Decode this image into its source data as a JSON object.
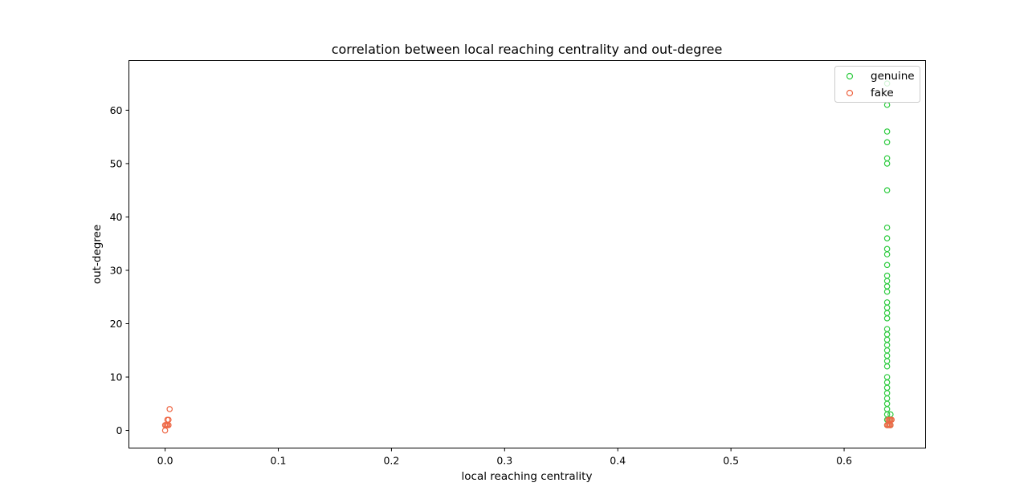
{
  "chart_data": {
    "type": "scatter",
    "title": "correlation between local reaching centrality and out-degree",
    "xlabel": "local reaching centrality",
    "ylabel": "out-degree",
    "xlim": [
      -0.032,
      0.672
    ],
    "ylim": [
      -3.3,
      69.3
    ],
    "xticks": [
      0.0,
      0.1,
      0.2,
      0.3,
      0.4,
      0.5,
      0.6
    ],
    "xtick_labels": [
      "0.0",
      "0.1",
      "0.2",
      "0.3",
      "0.4",
      "0.5",
      "0.6"
    ],
    "yticks": [
      0,
      10,
      20,
      30,
      40,
      50,
      60
    ],
    "ytick_labels": [
      "0",
      "10",
      "20",
      "30",
      "40",
      "50",
      "60"
    ],
    "grid": false,
    "legend": {
      "position": "top-right"
    },
    "series": [
      {
        "name": "genuine",
        "color": "#2ecc40",
        "marker": "hollow-circle",
        "points": [
          [
            0.638,
            1
          ],
          [
            0.638,
            2
          ],
          [
            0.638,
            3
          ],
          [
            0.638,
            4
          ],
          [
            0.638,
            5
          ],
          [
            0.638,
            6
          ],
          [
            0.638,
            7
          ],
          [
            0.638,
            8
          ],
          [
            0.638,
            9
          ],
          [
            0.638,
            10
          ],
          [
            0.638,
            12
          ],
          [
            0.638,
            13
          ],
          [
            0.638,
            14
          ],
          [
            0.638,
            15
          ],
          [
            0.638,
            16
          ],
          [
            0.638,
            17
          ],
          [
            0.638,
            18
          ],
          [
            0.638,
            19
          ],
          [
            0.638,
            21
          ],
          [
            0.638,
            22
          ],
          [
            0.638,
            23
          ],
          [
            0.638,
            24
          ],
          [
            0.638,
            26
          ],
          [
            0.638,
            27
          ],
          [
            0.638,
            28
          ],
          [
            0.638,
            29
          ],
          [
            0.638,
            31
          ],
          [
            0.638,
            33
          ],
          [
            0.638,
            34
          ],
          [
            0.638,
            36
          ],
          [
            0.638,
            38
          ],
          [
            0.638,
            45
          ],
          [
            0.638,
            50
          ],
          [
            0.638,
            51
          ],
          [
            0.638,
            54
          ],
          [
            0.638,
            56
          ],
          [
            0.638,
            61
          ],
          [
            0.638,
            65
          ],
          [
            0.641,
            1
          ],
          [
            0.641,
            2
          ],
          [
            0.641,
            3
          ]
        ]
      },
      {
        "name": "fake",
        "color": "#ee6644",
        "marker": "hollow-circle",
        "points": [
          [
            0.0,
            0
          ],
          [
            0.0,
            1
          ],
          [
            0.001,
            1
          ],
          [
            0.002,
            1
          ],
          [
            0.002,
            2
          ],
          [
            0.003,
            1
          ],
          [
            0.003,
            2
          ],
          [
            0.004,
            4
          ],
          [
            0.638,
            1
          ],
          [
            0.639,
            1
          ],
          [
            0.639,
            2
          ],
          [
            0.64,
            1
          ],
          [
            0.64,
            2
          ],
          [
            0.641,
            1
          ],
          [
            0.641,
            2
          ],
          [
            0.642,
            2
          ]
        ]
      }
    ]
  }
}
